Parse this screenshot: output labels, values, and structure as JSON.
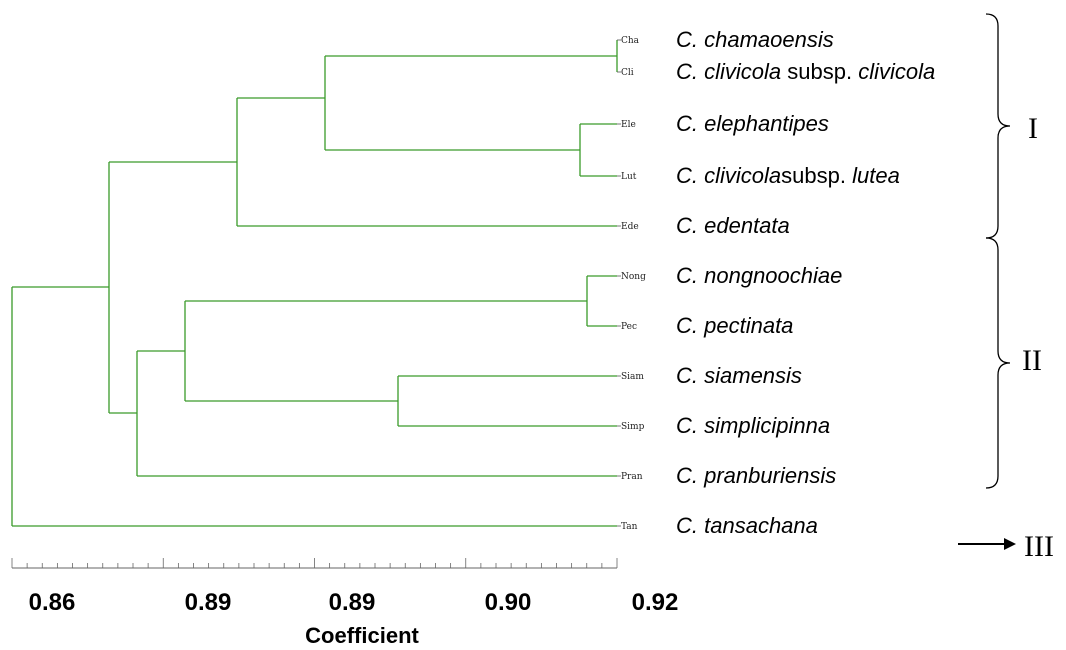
{
  "tree": {
    "line_color": "#3a9a2a",
    "leaves": [
      {
        "code": "Cha",
        "genus": "C.",
        "parts": [
          {
            "t": "chamaoensis",
            "i": true
          }
        ]
      },
      {
        "code": "Cli",
        "genus": "C.",
        "parts": [
          {
            "t": "clivicola",
            "i": true
          },
          {
            "t": " subsp. ",
            "i": false
          },
          {
            "t": "clivicola",
            "i": true
          }
        ]
      },
      {
        "code": "Ele",
        "genus": "C.",
        "parts": [
          {
            "t": "elephantipes",
            "i": true
          }
        ]
      },
      {
        "code": "Lut",
        "genus": "C.",
        "parts": [
          {
            "t": "clivicola",
            "i": true
          },
          {
            "t": "subsp. ",
            "i": false
          },
          {
            "t": "lutea",
            "i": true
          }
        ]
      },
      {
        "code": "Ede",
        "genus": "C.",
        "parts": [
          {
            "t": "edentata",
            "i": true
          }
        ]
      },
      {
        "code": "Nong",
        "genus": "C.",
        "parts": [
          {
            "t": "nongnoochiae",
            "i": true
          }
        ]
      },
      {
        "code": "Pec",
        "genus": "C.",
        "parts": [
          {
            "t": "pectinata",
            "i": true
          }
        ]
      },
      {
        "code": "Siam",
        "genus": "C.",
        "parts": [
          {
            "t": "siamensis",
            "i": true
          }
        ]
      },
      {
        "code": "Simp",
        "genus": "C.",
        "parts": [
          {
            "t": "simplicipinna",
            "i": true
          }
        ]
      },
      {
        "code": "Pran",
        "genus": "C.",
        "parts": [
          {
            "t": "pranburiensis",
            "i": true
          }
        ]
      },
      {
        "code": "Tan",
        "genus": "C.",
        "parts": [
          {
            "t": "tansachana",
            "i": true
          }
        ]
      }
    ],
    "groups": [
      {
        "label": "I",
        "first": 0,
        "last": 4
      },
      {
        "label": "II",
        "first": 5,
        "last": 9
      },
      {
        "label": "III",
        "leaf": 10,
        "arrow": true
      }
    ]
  },
  "axis": {
    "ticks": [
      "0.86",
      "0.89",
      "0.89",
      "0.90",
      "0.92"
    ],
    "label": "Coefficient"
  }
}
